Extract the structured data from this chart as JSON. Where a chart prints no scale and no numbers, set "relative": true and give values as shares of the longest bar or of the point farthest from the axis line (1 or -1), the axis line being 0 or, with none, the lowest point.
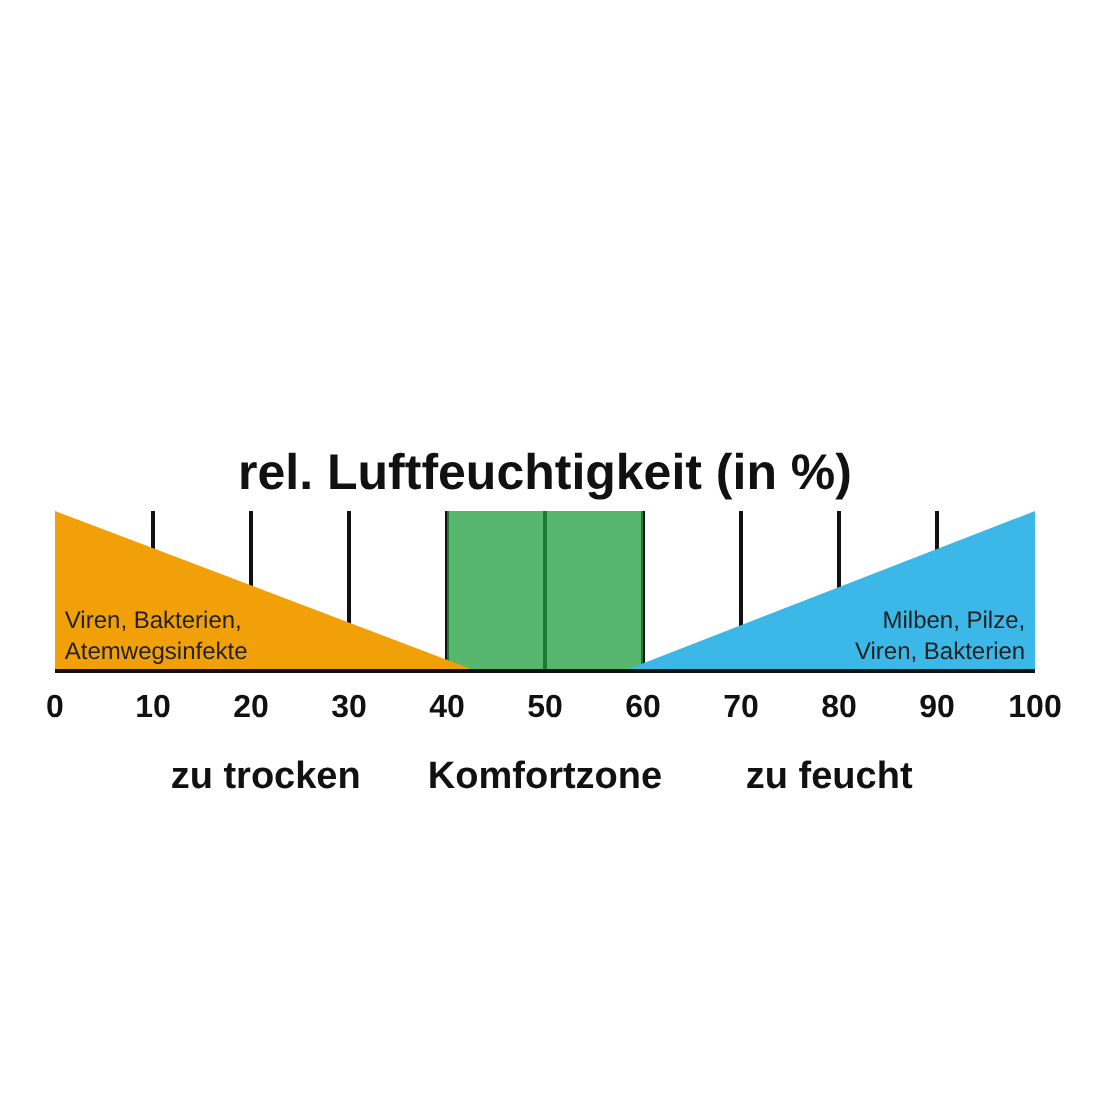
{
  "chart_data": {
    "type": "area",
    "title": "rel. Luftfeuchtigkeit (in %)",
    "relative": true,
    "series": [
      {
        "name": "Viren, Bakterien,\nAtemwegsinfekte",
        "color": "#f2a007",
        "x": [
          0,
          43
        ],
        "values": [
          1,
          0
        ]
      },
      {
        "name": "Milben, Pilze,\nViren, Bakterien",
        "color": "#3bb8e8",
        "x": [
          58,
          100
        ],
        "values": [
          0,
          1
        ]
      }
    ],
    "xlim": [
      0,
      100
    ],
    "xticks": [
      0,
      10,
      20,
      30,
      40,
      50,
      60,
      70,
      80,
      90,
      100
    ],
    "grid": "x",
    "bands": [
      {
        "axis": "x",
        "from": 40,
        "to": 60,
        "label": "Komfortzone",
        "color": "#1e9e3e"
      }
    ],
    "annotations": [
      "zu trocken",
      "zu feucht"
    ]
  }
}
